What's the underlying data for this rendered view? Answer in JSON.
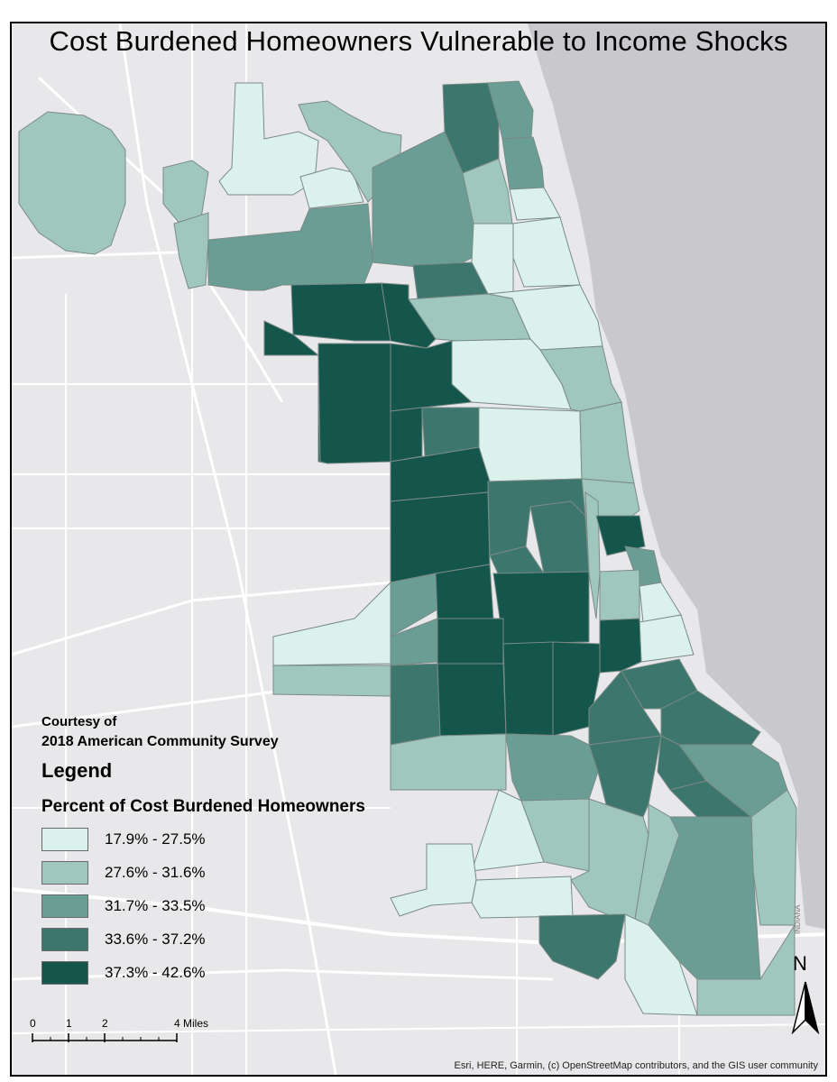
{
  "map": {
    "title": "Cost Burdened Homeowners Vulnerable to Income Shocks",
    "courtesy_line1": "Courtesy of",
    "courtesy_line2": "2018 American Community Survey",
    "legend_heading": "Legend",
    "legend_subtitle": "Percent of Cost Burdened Homeowners",
    "legend": [
      {
        "label": "17.9% - 27.5%",
        "color": "#dbf1ec"
      },
      {
        "label": "27.6% - 31.6%",
        "color": "#a0c7be"
      },
      {
        "label": "31.7% - 33.5%",
        "color": "#6a9e94"
      },
      {
        "label": "33.6% - 37.2%",
        "color": "#3c766d"
      },
      {
        "label": "37.3% - 42.6%",
        "color": "#14564c"
      }
    ],
    "scale": {
      "ticks": [
        "0",
        "1",
        "2",
        "4 Miles"
      ]
    },
    "north_label": "N",
    "attribution": "Esri, HERE, Garmin, (c) OpenStreetMap contributors, and the GIS user community",
    "region_label": "INDIANA",
    "colors": {
      "land": "#e8e8ea",
      "water": "#c9c9cd",
      "roads": "#ffffff",
      "border": "#7a8a86"
    }
  }
}
